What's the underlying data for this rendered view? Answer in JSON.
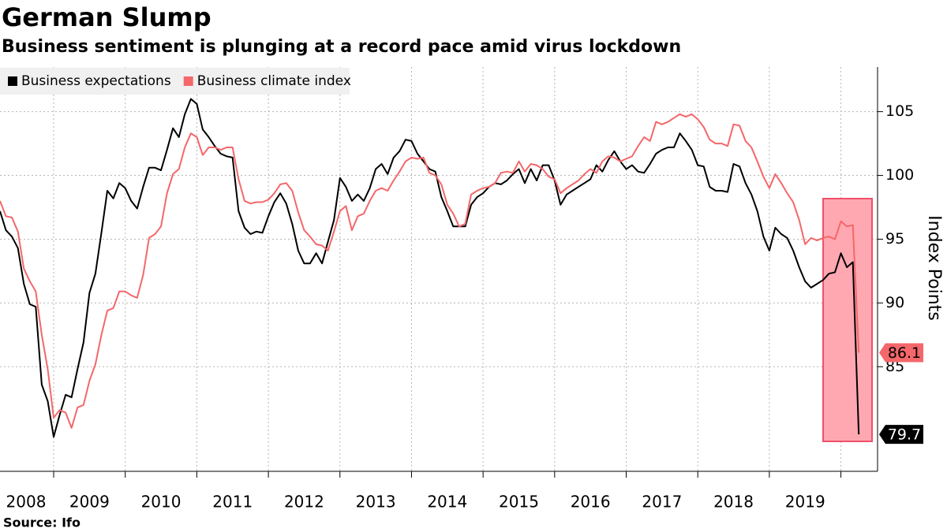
{
  "chart_data": {
    "type": "line",
    "title": "German Slump",
    "subtitle": "Business sentiment is plunging at a record pace amid virus lockdown",
    "y_axis_label": "Index Points",
    "source": "Source: Ifo",
    "x": [
      2008.25,
      2008.333,
      2008.417,
      2008.5,
      2008.583,
      2008.667,
      2008.75,
      2008.833,
      2008.917,
      2009,
      2009.083,
      2009.167,
      2009.25,
      2009.333,
      2009.417,
      2009.5,
      2009.583,
      2009.667,
      2009.75,
      2009.833,
      2009.917,
      2010,
      2010.083,
      2010.167,
      2010.25,
      2010.333,
      2010.417,
      2010.5,
      2010.583,
      2010.667,
      2010.75,
      2010.833,
      2010.917,
      2011,
      2011.083,
      2011.167,
      2011.25,
      2011.333,
      2011.417,
      2011.5,
      2011.583,
      2011.667,
      2011.75,
      2011.833,
      2011.917,
      2012,
      2012.083,
      2012.167,
      2012.25,
      2012.333,
      2012.417,
      2012.5,
      2012.583,
      2012.667,
      2012.75,
      2012.833,
      2012.917,
      2013,
      2013.083,
      2013.167,
      2013.25,
      2013.333,
      2013.417,
      2013.5,
      2013.583,
      2013.667,
      2013.75,
      2013.833,
      2013.917,
      2014,
      2014.083,
      2014.167,
      2014.25,
      2014.333,
      2014.417,
      2014.5,
      2014.583,
      2014.667,
      2014.75,
      2014.833,
      2014.917,
      2015,
      2015.083,
      2015.167,
      2015.25,
      2015.333,
      2015.417,
      2015.5,
      2015.583,
      2015.667,
      2015.75,
      2015.833,
      2015.917,
      2016,
      2016.083,
      2016.167,
      2016.25,
      2016.333,
      2016.417,
      2016.5,
      2016.583,
      2016.667,
      2016.75,
      2016.833,
      2016.917,
      2017,
      2017.083,
      2017.167,
      2017.25,
      2017.333,
      2017.417,
      2017.5,
      2017.583,
      2017.667,
      2017.75,
      2017.833,
      2017.917,
      2018,
      2018.083,
      2018.167,
      2018.25,
      2018.333,
      2018.417,
      2018.5,
      2018.583,
      2018.667,
      2018.75,
      2018.833,
      2018.917,
      2019,
      2019.083,
      2019.167,
      2019.25,
      2019.333,
      2019.417,
      2019.5,
      2019.583,
      2019.667,
      2019.75,
      2019.833,
      2019.917,
      2020,
      2020.083,
      2020.167,
      2020.25
    ],
    "series": [
      {
        "name": "Business expectations",
        "color": "#000000",
        "label_text_color": "#ffffff",
        "values": [
          97.2,
          95.7,
          95.2,
          94.3,
          91.5,
          89.9,
          89.7,
          83.6,
          82.3,
          79.5,
          81.2,
          82.8,
          82.6,
          84.8,
          86.9,
          90.8,
          92.3,
          95.5,
          98.8,
          98.2,
          99.4,
          99.0,
          98.0,
          97.4,
          99.1,
          100.6,
          100.6,
          100.4,
          102.0,
          103.7,
          103.0,
          104.8,
          106.0,
          105.6,
          103.6,
          103.0,
          102.3,
          101.7,
          101.5,
          101.4,
          97.2,
          95.9,
          95.4,
          95.6,
          95.5,
          96.8,
          97.9,
          98.6,
          97.8,
          96.2,
          94.1,
          93.1,
          93.1,
          93.9,
          93.1,
          94.8,
          96.5,
          99.8,
          99.1,
          98.0,
          98.5,
          98.0,
          99.0,
          100.5,
          100.9,
          100.1,
          101.4,
          101.9,
          102.8,
          102.7,
          101.7,
          101.1,
          100.5,
          100.3,
          98.3,
          97.2,
          96.0,
          96.0,
          96.0,
          97.7,
          98.3,
          98.6,
          99.1,
          99.4,
          99.3,
          99.6,
          100.1,
          100.5,
          99.4,
          100.5,
          99.6,
          100.8,
          100.8,
          99.6,
          97.7,
          98.5,
          98.8,
          99.1,
          99.4,
          99.7,
          100.8,
          100.3,
          101.2,
          101.9,
          101.1,
          100.5,
          100.8,
          100.3,
          100.2,
          100.9,
          101.7,
          102.0,
          102.2,
          102.2,
          103.3,
          102.7,
          102.0,
          100.8,
          100.7,
          99.1,
          98.8,
          98.8,
          98.7,
          100.9,
          100.7,
          99.4,
          98.5,
          97.2,
          95.2,
          94.1,
          95.9,
          95.4,
          95.1,
          94.1,
          92.8,
          91.7,
          91.2,
          91.5,
          91.8,
          92.3,
          92.4,
          93.9,
          92.8,
          93.2,
          79.7
        ]
      },
      {
        "name": "Business climate index",
        "color": "#f4676a",
        "label_text_color": "#000000",
        "values": [
          98.0,
          96.8,
          96.7,
          95.6,
          92.7,
          91.7,
          90.9,
          87.5,
          84.8,
          81.0,
          81.6,
          81.4,
          80.2,
          81.8,
          82.0,
          83.9,
          85.2,
          87.5,
          89.4,
          89.6,
          90.9,
          90.9,
          90.6,
          90.4,
          92.2,
          95.1,
          95.4,
          96.0,
          98.6,
          100.1,
          100.5,
          102.2,
          103.3,
          103.0,
          101.6,
          102.2,
          102.2,
          102.0,
          102.2,
          102.2,
          99.7,
          98.0,
          97.8,
          97.9,
          97.9,
          98.1,
          98.6,
          99.3,
          99.4,
          98.8,
          97.1,
          95.7,
          95.2,
          94.6,
          94.5,
          94.1,
          95.6,
          97.2,
          97.6,
          95.7,
          96.8,
          97.0,
          98.0,
          98.8,
          99.0,
          98.8,
          99.6,
          100.3,
          101.1,
          101.4,
          101.3,
          101.4,
          100.2,
          100.0,
          99.3,
          97.7,
          97.0,
          96.0,
          96.2,
          98.5,
          98.8,
          99.0,
          99.1,
          99.4,
          100.2,
          100.3,
          100.2,
          101.1,
          100.3,
          100.9,
          100.8,
          100.5,
          99.9,
          99.7,
          98.6,
          99.0,
          99.3,
          99.6,
          100.1,
          100.5,
          100.2,
          101.1,
          101.5,
          101.4,
          101.1,
          101.3,
          101.5,
          102.3,
          103.0,
          102.7,
          104.2,
          104.0,
          104.2,
          104.5,
          104.8,
          104.6,
          104.8,
          104.4,
          103.8,
          102.8,
          102.5,
          102.5,
          102.3,
          104.0,
          103.9,
          102.7,
          102.2,
          101.1,
          99.9,
          99.0,
          100.1,
          99.4,
          98.6,
          97.9,
          96.5,
          94.6,
          95.1,
          94.9,
          95.1,
          95.2,
          95.0,
          96.4,
          96.0,
          96.1,
          86.1
        ]
      }
    ],
    "xlim": [
      2008.25,
      2020.49
    ],
    "xticks": [
      2009,
      2010,
      2011,
      2012,
      2013,
      2014,
      2015,
      2016,
      2017,
      2018,
      2019,
      2020
    ],
    "year_labels": [
      "2008",
      "2009",
      "2010",
      "2011",
      "2012",
      "2013",
      "2014",
      "2015",
      "2016",
      "2017",
      "2018",
      "2019"
    ],
    "ylim": [
      76.8,
      108.5
    ],
    "yticks": [
      85,
      90,
      95,
      100,
      105
    ],
    "grid": true,
    "legend_position": "top-left"
  }
}
